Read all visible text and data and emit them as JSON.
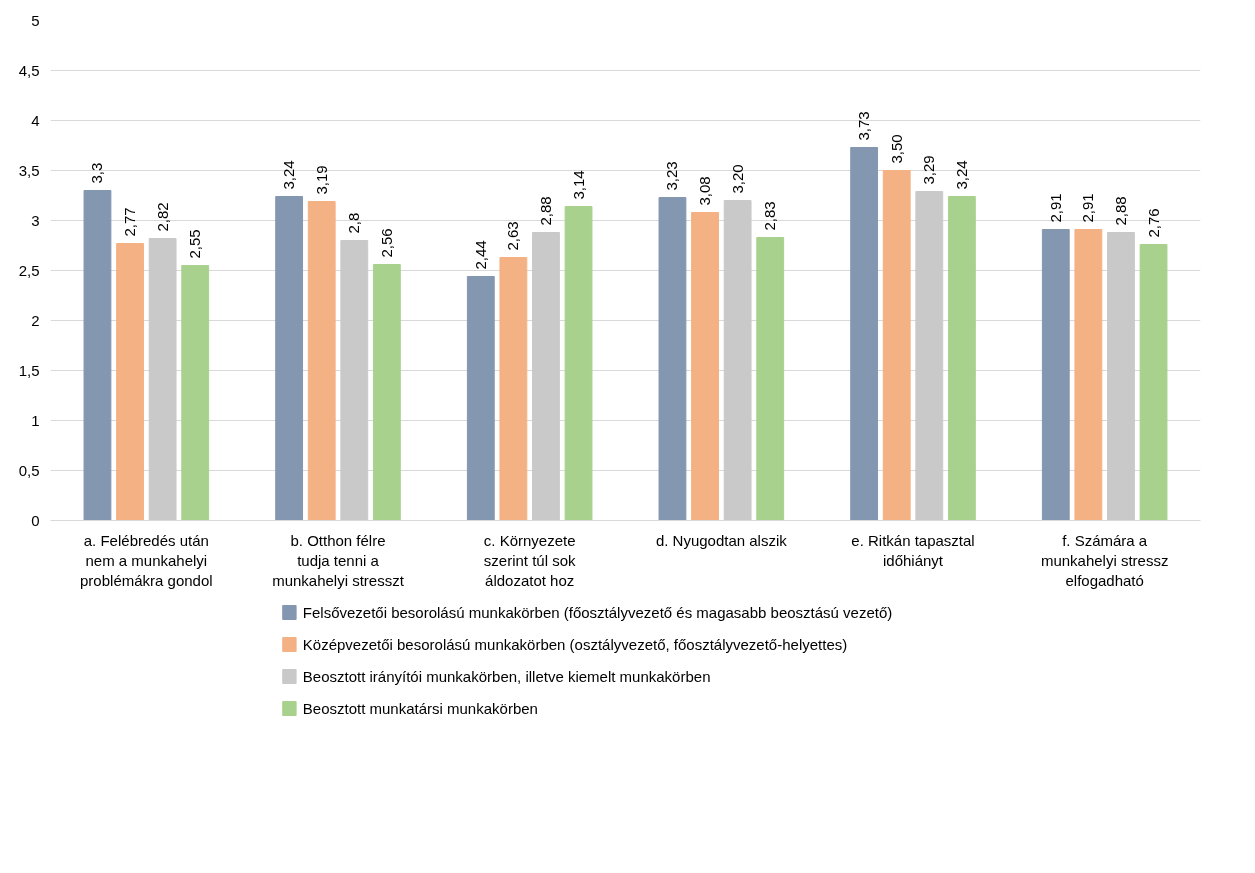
{
  "chart_data": {
    "type": "bar",
    "categories": [
      "a. Felébredés után nem a munkahelyi problémákra gondol",
      "b. Otthon félre tudja tenni a munkahelyi stresszt",
      "c. Környezete szerint túl sok áldozatot hoz",
      "d. Nyugodtan alszik",
      "e. Ritkán tapasztal időhiányt",
      "f. Számára a munkahelyi stressz elfogadható"
    ],
    "series": [
      {
        "name": "Felsővezetői besorolású munkakörben (főosztályvezető és magasabb beosztású vezető)",
        "color": "#8497b0",
        "values": [
          3.3,
          3.24,
          2.44,
          3.23,
          3.73,
          2.91
        ],
        "value_labels": [
          "3,3",
          "3,24",
          "2,44",
          "3,23",
          "3,73",
          "2,91"
        ]
      },
      {
        "name": "Középvezetői besorolású munkakörben (osztályvezető, főosztályvezető-helyettes)",
        "color": "#f4b183",
        "values": [
          2.77,
          3.19,
          2.63,
          3.08,
          3.5,
          2.91
        ],
        "value_labels": [
          "2,77",
          "3,19",
          "2,63",
          "3,08",
          "3,50",
          "2,91"
        ]
      },
      {
        "name": "Beosztott irányítói munkakörben, illetve kiemelt munkakörben",
        "color": "#c9c9c9",
        "values": [
          2.82,
          2.8,
          2.88,
          3.2,
          3.29,
          2.88
        ],
        "value_labels": [
          "2,82",
          "2,8",
          "2,88",
          "3,20",
          "3,29",
          "2,88"
        ]
      },
      {
        "name": "Beosztott munkatársi munkakörben",
        "color": "#a9d18e",
        "values": [
          2.55,
          2.56,
          3.14,
          2.83,
          3.24,
          2.76
        ],
        "value_labels": [
          "2,55",
          "2,56",
          "3,14",
          "2,83",
          "3,24",
          "2,76"
        ]
      }
    ],
    "ylim": [
      0,
      5
    ],
    "yticks": [
      0,
      {
        "value": 0.5,
        "label": "0,5"
      },
      1,
      {
        "value": 1.5,
        "label": "1,5"
      },
      2,
      {
        "value": 2.5,
        "label": "2,5"
      },
      3,
      {
        "value": 3.5,
        "label": "3,5"
      },
      4,
      {
        "value": 4.5,
        "label": "4,5"
      },
      5
    ],
    "grid": "y",
    "legend": "bottom"
  }
}
